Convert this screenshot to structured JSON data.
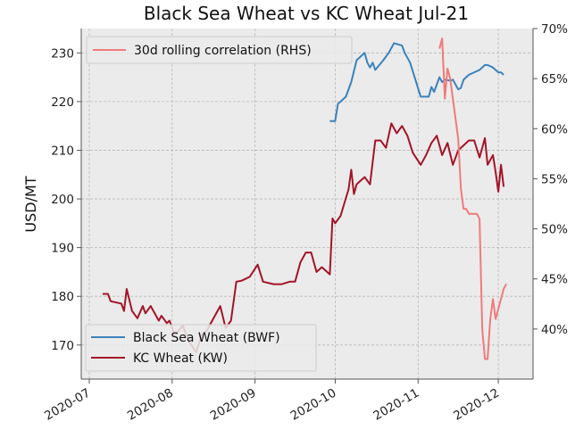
{
  "chart_data": {
    "type": "line",
    "title": "Black Sea Wheat vs KC Wheat Jul-21",
    "ylabel": "USD/MT",
    "y2label": "",
    "xlabel": "",
    "ylim": [
      163,
      235
    ],
    "y2lim": [
      0.35,
      0.7
    ],
    "xlim": [
      "2020-06-28",
      "2020-12-14"
    ],
    "x_ticks": [
      "2020-07",
      "2020-08",
      "2020-09",
      "2020-10",
      "2020-11",
      "2020-12"
    ],
    "y_ticks": [
      170,
      180,
      190,
      200,
      210,
      220,
      230
    ],
    "y2_ticks": [
      "40%",
      "45%",
      "50%",
      "55%",
      "60%",
      "65%",
      "70%"
    ],
    "y2_tick_values": [
      0.4,
      0.45,
      0.5,
      0.55,
      0.6,
      0.65,
      0.7
    ],
    "grid": true,
    "legend_upper": {
      "placement": "top-left",
      "entries": [
        "30d rolling correlation (RHS)"
      ]
    },
    "legend_lower": {
      "placement": "bottom-left",
      "entries": [
        "Black Sea Wheat (BWF)",
        "KC Wheat (KW)"
      ]
    },
    "colors": {
      "bwf": "#3a82bb",
      "kw": "#a31428",
      "corr": "#f07a7a",
      "plot_bg": "#ebebeb",
      "grid": "#b8b8b8"
    },
    "series": [
      {
        "name": "Black Sea Wheat (BWF)",
        "axis": "left",
        "color": "#3a82bb",
        "x": [
          "2020-09-29",
          "2020-10-01",
          "2020-10-02",
          "2020-10-05",
          "2020-10-07",
          "2020-10-09",
          "2020-10-12",
          "2020-10-13",
          "2020-10-14",
          "2020-10-15",
          "2020-10-16",
          "2020-10-19",
          "2020-10-21",
          "2020-10-23",
          "2020-10-26",
          "2020-10-27",
          "2020-10-29",
          "2020-11-02",
          "2020-11-04",
          "2020-11-05",
          "2020-11-06",
          "2020-11-07",
          "2020-11-09",
          "2020-11-10",
          "2020-11-11",
          "2020-11-13",
          "2020-11-14",
          "2020-11-16",
          "2020-11-17",
          "2020-11-18",
          "2020-11-20",
          "2020-11-22",
          "2020-11-24",
          "2020-11-26",
          "2020-11-27",
          "2020-11-29",
          "2020-12-01",
          "2020-12-02",
          "2020-12-03"
        ],
        "values": [
          216.0,
          216.0,
          219.5,
          221.0,
          224.0,
          228.5,
          230.0,
          228.0,
          227.0,
          228.0,
          226.5,
          228.5,
          230.0,
          232.0,
          231.5,
          230.0,
          228.0,
          221.0,
          221.0,
          221.0,
          223.0,
          222.0,
          225.0,
          224.0,
          224.5,
          224.3,
          224.5,
          222.5,
          222.8,
          224.5,
          225.5,
          226.0,
          226.5,
          227.5,
          227.5,
          227.0,
          226.0,
          226.0,
          225.5
        ]
      },
      {
        "name": "KC Wheat (KW)",
        "axis": "left",
        "color": "#a31428",
        "x": [
          "2020-07-06",
          "2020-07-08",
          "2020-07-09",
          "2020-07-13",
          "2020-07-14",
          "2020-07-15",
          "2020-07-17",
          "2020-07-19",
          "2020-07-21",
          "2020-07-22",
          "2020-07-24",
          "2020-07-27",
          "2020-07-28",
          "2020-07-30",
          "2020-07-31",
          "2020-08-02",
          "2020-08-05",
          "2020-08-07",
          "2020-08-10",
          "2020-08-12",
          "2020-08-14",
          "2020-08-17",
          "2020-08-19",
          "2020-08-21",
          "2020-08-23",
          "2020-08-25",
          "2020-08-27",
          "2020-08-30",
          "2020-09-02",
          "2020-09-04",
          "2020-09-08",
          "2020-09-11",
          "2020-09-14",
          "2020-09-16",
          "2020-09-18",
          "2020-09-20",
          "2020-09-22",
          "2020-09-24",
          "2020-09-26",
          "2020-09-29",
          "2020-09-30",
          "2020-10-01",
          "2020-10-03",
          "2020-10-06",
          "2020-10-07",
          "2020-10-08",
          "2020-10-09",
          "2020-10-10",
          "2020-10-12",
          "2020-10-14",
          "2020-10-16",
          "2020-10-18",
          "2020-10-20",
          "2020-10-22",
          "2020-10-24",
          "2020-10-26",
          "2020-10-28",
          "2020-10-30",
          "2020-11-02",
          "2020-11-04",
          "2020-11-06",
          "2020-11-08",
          "2020-11-10",
          "2020-11-12",
          "2020-11-14",
          "2020-11-16",
          "2020-11-18",
          "2020-11-20",
          "2020-11-22",
          "2020-11-24",
          "2020-11-26",
          "2020-11-27",
          "2020-11-29",
          "2020-11-30",
          "2020-12-01",
          "2020-12-02",
          "2020-12-03"
        ],
        "values": [
          180.5,
          180.5,
          179.0,
          178.5,
          177.0,
          181.5,
          177.0,
          175.5,
          178.0,
          176.5,
          178.0,
          175.0,
          176.0,
          174.5,
          175.0,
          172.0,
          174.0,
          171.0,
          168.5,
          172.0,
          173.0,
          176.0,
          178.0,
          173.5,
          175.0,
          183.0,
          183.2,
          184.0,
          186.5,
          183.0,
          182.5,
          182.5,
          183.0,
          183.0,
          187.0,
          189.0,
          189.0,
          185.0,
          186.0,
          184.5,
          196.0,
          195.0,
          196.5,
          202.0,
          206.0,
          201.0,
          203.0,
          203.5,
          204.5,
          203.0,
          212.0,
          212.0,
          210.5,
          215.5,
          213.5,
          215.0,
          213.0,
          209.5,
          207.0,
          209.0,
          211.5,
          213.0,
          209.0,
          211.5,
          207.0,
          210.0,
          211.0,
          212.0,
          212.0,
          208.5,
          212.5,
          207.0,
          209.0,
          205.5,
          201.5,
          207.0,
          202.5
        ]
      },
      {
        "name": "30d rolling correlation (RHS)",
        "axis": "right",
        "color": "#f07a7a",
        "x": [
          "2020-11-09",
          "2020-11-10",
          "2020-11-11",
          "2020-11-12",
          "2020-11-13",
          "2020-11-14",
          "2020-11-16",
          "2020-11-17",
          "2020-11-18",
          "2020-11-19",
          "2020-11-20",
          "2020-11-23",
          "2020-11-24",
          "2020-11-25",
          "2020-11-26",
          "2020-11-27",
          "2020-11-28",
          "2020-11-29",
          "2020-11-30",
          "2020-12-01",
          "2020-12-02",
          "2020-12-03",
          "2020-12-04"
        ],
        "values": [
          0.68,
          0.69,
          0.63,
          0.66,
          0.65,
          0.63,
          0.59,
          0.54,
          0.52,
          0.52,
          0.515,
          0.515,
          0.51,
          0.4,
          0.37,
          0.37,
          0.41,
          0.43,
          0.41,
          0.42,
          0.43,
          0.44,
          0.445
        ]
      }
    ]
  }
}
